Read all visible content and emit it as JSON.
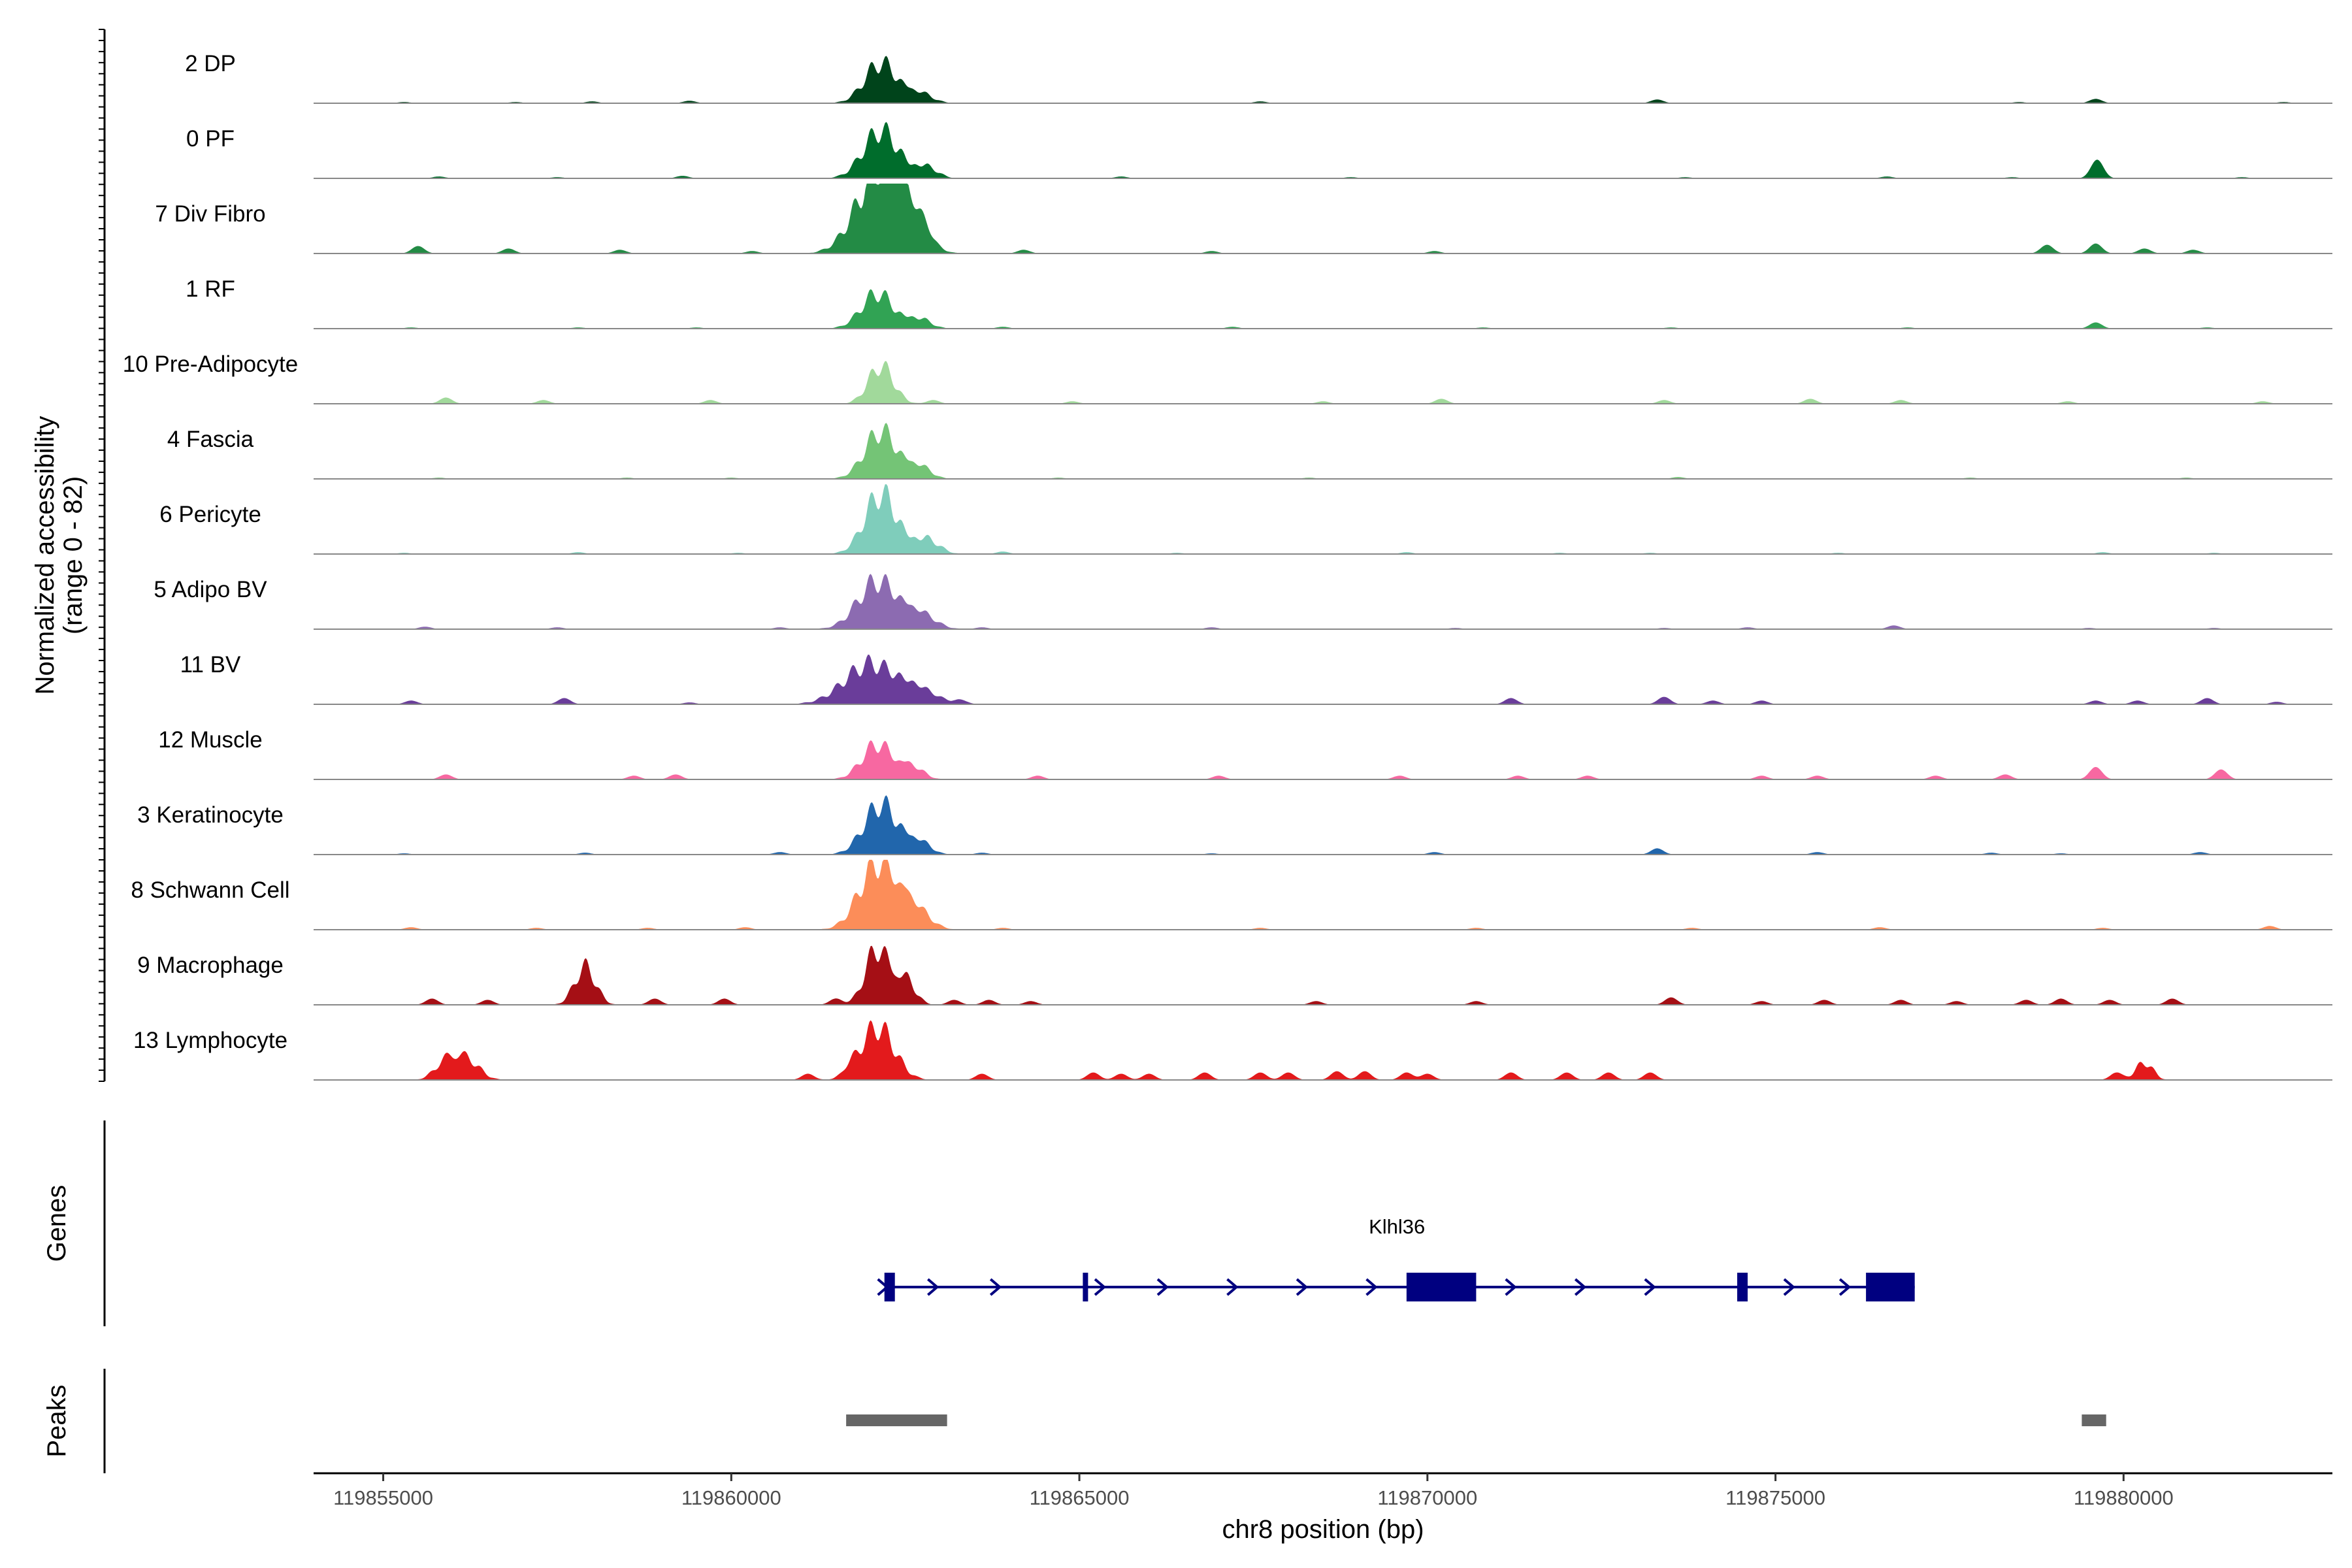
{
  "chart_data": {
    "type": "area",
    "y_axis_label": "Normalized accessibility",
    "y_range_label": "(range 0 - 82)",
    "ylim": [
      0,
      82
    ],
    "x_axis_label": "chr8 position (bp)",
    "xlim": [
      119854000,
      119883000
    ],
    "x_ticks": [
      119855000,
      119860000,
      119865000,
      119870000,
      119875000,
      119880000
    ],
    "tracks": [
      {
        "name": "2 DP",
        "color": "#00441b",
        "peaks": [
          [
            119862150,
            32,
            230
          ],
          [
            119862700,
            8,
            180
          ]
        ],
        "noise": [
          [
            119855300,
            1
          ],
          [
            119856900,
            1
          ],
          [
            119858000,
            1.5
          ],
          [
            119859400,
            2
          ],
          [
            119867600,
            1.5
          ],
          [
            119873300,
            3
          ],
          [
            119878500,
            1
          ],
          [
            119879600,
            3.5
          ],
          [
            119882300,
            1
          ]
        ]
      },
      {
        "name": "0 PF",
        "color": "#006d2c",
        "peaks": [
          [
            119862150,
            38,
            250
          ],
          [
            119862800,
            9,
            160
          ]
        ],
        "noise": [
          [
            119855800,
            1.5
          ],
          [
            119857500,
            1
          ],
          [
            119859300,
            2
          ],
          [
            119865600,
            1.5
          ],
          [
            119868900,
            1
          ],
          [
            119873700,
            1
          ],
          [
            119876600,
            1.5
          ],
          [
            119878400,
            1
          ],
          [
            119879620,
            15
          ],
          [
            119881700,
            1
          ]
        ]
      },
      {
        "name": "7 Div Fibro",
        "color": "#238b45",
        "peaks": [
          [
            119862100,
            60,
            320
          ],
          [
            119862500,
            30,
            250
          ]
        ],
        "noise": [
          [
            119855500,
            6
          ],
          [
            119856800,
            4
          ],
          [
            119858400,
            3
          ],
          [
            119860300,
            2
          ],
          [
            119862800,
            5
          ],
          [
            119864200,
            3
          ],
          [
            119866900,
            2
          ],
          [
            119870100,
            2
          ],
          [
            119878900,
            7
          ],
          [
            119879600,
            8
          ],
          [
            119880300,
            4
          ],
          [
            119881000,
            3
          ]
        ]
      },
      {
        "name": "1 RF",
        "color": "#31a354",
        "peaks": [
          [
            119862100,
            28,
            230
          ],
          [
            119862700,
            8,
            160
          ]
        ],
        "noise": [
          [
            119855400,
            1
          ],
          [
            119857800,
            1
          ],
          [
            119859500,
            1
          ],
          [
            119863900,
            1.5
          ],
          [
            119867200,
            1.5
          ],
          [
            119870800,
            1
          ],
          [
            119873500,
            1
          ],
          [
            119876900,
            1
          ],
          [
            119879600,
            5
          ],
          [
            119881200,
            1
          ]
        ]
      },
      {
        "name": "10 Pre-Adipocyte",
        "color": "#a1d99b",
        "peaks": [
          [
            119862150,
            30,
            180
          ]
        ],
        "noise": [
          [
            119855900,
            5
          ],
          [
            119857300,
            3
          ],
          [
            119859700,
            3
          ],
          [
            119862900,
            3
          ],
          [
            119864900,
            2
          ],
          [
            119868500,
            2
          ],
          [
            119870200,
            4
          ],
          [
            119873400,
            3
          ],
          [
            119875500,
            4
          ],
          [
            119876800,
            3
          ],
          [
            119879200,
            2
          ],
          [
            119882000,
            2
          ]
        ]
      },
      {
        "name": "4 Fascia",
        "color": "#74c476",
        "peaks": [
          [
            119862150,
            38,
            230
          ],
          [
            119862700,
            10,
            160
          ]
        ],
        "noise": [
          [
            119855800,
            1
          ],
          [
            119858500,
            1
          ],
          [
            119860000,
            1
          ],
          [
            119864700,
            1
          ],
          [
            119868300,
            1
          ],
          [
            119873600,
            1.5
          ],
          [
            119877800,
            1
          ],
          [
            119880900,
            1
          ]
        ]
      },
      {
        "name": "6 Pericyte",
        "color": "#7fcdbb",
        "peaks": [
          [
            119862150,
            48,
            230
          ],
          [
            119862800,
            12,
            180
          ]
        ],
        "noise": [
          [
            119855300,
            1
          ],
          [
            119857800,
            1.5
          ],
          [
            119860100,
            1
          ],
          [
            119863900,
            2
          ],
          [
            119866400,
            1
          ],
          [
            119869700,
            1.5
          ],
          [
            119871900,
            1
          ],
          [
            119873200,
            1
          ],
          [
            119875900,
            1
          ],
          [
            119879700,
            1.5
          ],
          [
            119881300,
            1
          ]
        ]
      },
      {
        "name": "5 Adipo BV",
        "color": "#8c6bb1",
        "peaks": [
          [
            119862100,
            38,
            280
          ],
          [
            119862700,
            12,
            220
          ]
        ],
        "noise": [
          [
            119855600,
            2
          ],
          [
            119857500,
            1.5
          ],
          [
            119860700,
            1.5
          ],
          [
            119863600,
            1.5
          ],
          [
            119866900,
            1.5
          ],
          [
            119870400,
            1
          ],
          [
            119873400,
            1
          ],
          [
            119874600,
            1.5
          ],
          [
            119876700,
            3
          ],
          [
            119879500,
            1
          ],
          [
            119881300,
            1
          ]
        ]
      },
      {
        "name": "11 BV",
        "color": "#6a3d9a",
        "peaks": [
          [
            119862000,
            32,
            370
          ],
          [
            119862700,
            10,
            260
          ]
        ],
        "noise": [
          [
            119855400,
            3
          ],
          [
            119857600,
            5
          ],
          [
            119859400,
            1.5
          ],
          [
            119863300,
            3
          ],
          [
            119871200,
            5
          ],
          [
            119873400,
            6
          ],
          [
            119874100,
            3
          ],
          [
            119874800,
            3
          ],
          [
            119879600,
            3
          ],
          [
            119880200,
            3
          ],
          [
            119881200,
            5
          ],
          [
            119882200,
            2
          ]
        ]
      },
      {
        "name": "12 Muscle",
        "color": "#f768a1",
        "peaks": [
          [
            119862100,
            28,
            220
          ],
          [
            119862600,
            10,
            160
          ]
        ],
        "noise": [
          [
            119855900,
            4
          ],
          [
            119858600,
            3
          ],
          [
            119859200,
            4
          ],
          [
            119864400,
            3
          ],
          [
            119867000,
            3
          ],
          [
            119869600,
            3
          ],
          [
            119871300,
            3
          ],
          [
            119872300,
            3
          ],
          [
            119874800,
            3
          ],
          [
            119875600,
            3
          ],
          [
            119877300,
            3
          ],
          [
            119878300,
            4
          ],
          [
            119879600,
            10
          ],
          [
            119881400,
            8
          ]
        ]
      },
      {
        "name": "3 Keratinocyte",
        "color": "#2166ac",
        "peaks": [
          [
            119862150,
            40,
            240
          ],
          [
            119862700,
            10,
            160
          ]
        ],
        "noise": [
          [
            119855300,
            1
          ],
          [
            119857900,
            1.5
          ],
          [
            119860700,
            2
          ],
          [
            119863600,
            1.5
          ],
          [
            119866900,
            1
          ],
          [
            119870100,
            2
          ],
          [
            119873300,
            5
          ],
          [
            119875600,
            2
          ],
          [
            119878100,
            1.5
          ],
          [
            119879100,
            1
          ],
          [
            119881100,
            2
          ]
        ]
      },
      {
        "name": "8 Schwann Cell",
        "color": "#fc8d59",
        "peaks": [
          [
            119862100,
            52,
            260
          ],
          [
            119862600,
            18,
            220
          ]
        ],
        "noise": [
          [
            119855400,
            2
          ],
          [
            119857200,
            1.5
          ],
          [
            119858800,
            1.5
          ],
          [
            119860200,
            2
          ],
          [
            119863900,
            1.5
          ],
          [
            119867600,
            1.5
          ],
          [
            119870700,
            1.5
          ],
          [
            119873800,
            1.5
          ],
          [
            119876500,
            2
          ],
          [
            119879700,
            1.5
          ],
          [
            119882100,
            3
          ]
        ]
      },
      {
        "name": "9 Macrophage",
        "color": "#a50f15",
        "peaks": [
          [
            119857900,
            30,
            150
          ],
          [
            119862100,
            45,
            170
          ],
          [
            119862500,
            20,
            140
          ]
        ],
        "noise": [
          [
            119855700,
            5
          ],
          [
            119856500,
            4
          ],
          [
            119858900,
            5
          ],
          [
            119859900,
            5
          ],
          [
            119861500,
            5
          ],
          [
            119863200,
            4
          ],
          [
            119863700,
            4
          ],
          [
            119864300,
            3
          ],
          [
            119868400,
            3
          ],
          [
            119870700,
            3
          ],
          [
            119873500,
            6
          ],
          [
            119874800,
            3
          ],
          [
            119875700,
            4
          ],
          [
            119876800,
            4
          ],
          [
            119877600,
            3
          ],
          [
            119878600,
            4
          ],
          [
            119879100,
            5
          ],
          [
            119879800,
            4
          ],
          [
            119880700,
            5
          ]
        ]
      },
      {
        "name": "13 Lymphocyte",
        "color": "#e31a1c",
        "peaks": [
          [
            119855900,
            14,
            160
          ],
          [
            119856200,
            16,
            180
          ],
          [
            119862100,
            42,
            240
          ],
          [
            119880300,
            14,
            120
          ]
        ],
        "noise": [
          [
            119861100,
            5
          ],
          [
            119861700,
            5
          ],
          [
            119863600,
            5
          ],
          [
            119865200,
            6
          ],
          [
            119865600,
            5
          ],
          [
            119866000,
            5
          ],
          [
            119866800,
            6
          ],
          [
            119867600,
            6
          ],
          [
            119868000,
            6
          ],
          [
            119868700,
            7
          ],
          [
            119869100,
            7
          ],
          [
            119869700,
            6
          ],
          [
            119870000,
            5
          ],
          [
            119871200,
            6
          ],
          [
            119872000,
            6
          ],
          [
            119872600,
            6
          ],
          [
            119873200,
            6
          ],
          [
            119879900,
            6
          ]
        ]
      }
    ],
    "genes_label": "Genes",
    "gene": {
      "name": "Klhl36",
      "color": "#000080",
      "start": 119862200,
      "end": 119877000,
      "exons": [
        [
          119862200,
          119862350
        ],
        [
          119865050,
          119865120
        ],
        [
          119869700,
          119870700
        ],
        [
          119874450,
          119874600
        ],
        [
          119876300,
          119877000
        ]
      ],
      "arrows": [
        119862900,
        119863800,
        119865300,
        119866200,
        119867200,
        119868200,
        119869200,
        119871200,
        119872200,
        119873200,
        119875200,
        119876000
      ]
    },
    "peaks_label": "Peaks",
    "peak_regions": [
      [
        119861650,
        119863100
      ],
      [
        119879400,
        119879750
      ]
    ]
  }
}
